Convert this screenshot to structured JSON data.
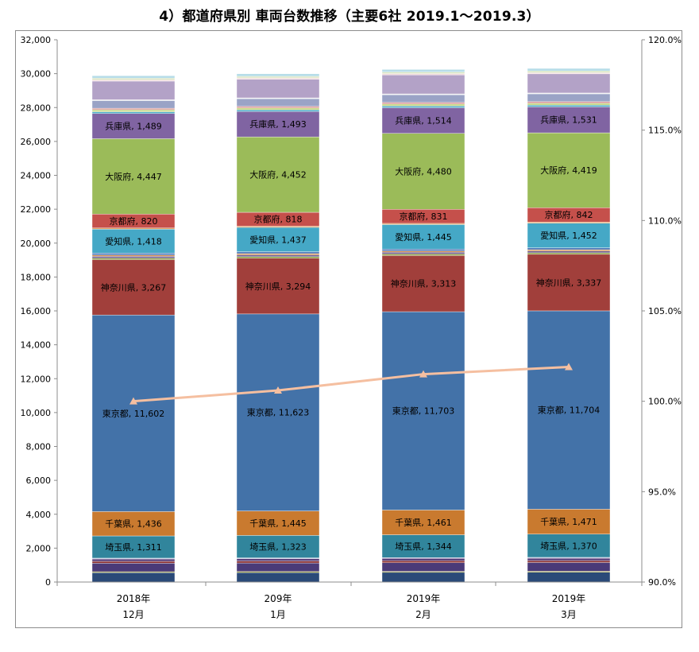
{
  "chart_data": {
    "type": "bar",
    "stacked": true,
    "title": "4）都道府県別 車両台数推移（主要6社 2019.1～2019.3）",
    "categories": [
      {
        "line1": "2018年",
        "line2": "12月"
      },
      {
        "line1": "209年",
        "line2": "1月"
      },
      {
        "line1": "2019年",
        "line2": "2月"
      },
      {
        "line1": "2019年",
        "line2": "3月"
      }
    ],
    "y_left": {
      "min": 0,
      "max": 32000,
      "step": 2000,
      "tick_labels": [
        "0",
        "2,000",
        "4,000",
        "6,000",
        "8,000",
        "10,000",
        "12,000",
        "14,000",
        "16,000",
        "18,000",
        "20,000",
        "22,000",
        "24,000",
        "26,000",
        "28,000",
        "30,000",
        "32,000"
      ]
    },
    "y_right": {
      "min": 90,
      "max": 120,
      "step": 5,
      "tick_labels": [
        "90.0%",
        "95.0%",
        "100.0%",
        "105.0%",
        "110.0%",
        "115.0%",
        "120.0%"
      ]
    },
    "grid": false,
    "series": [
      {
        "color": "#2a4a78",
        "values": [
          550,
          560,
          570,
          575
        ]
      },
      {
        "color": "#9c9c32",
        "values": [
          60,
          60,
          60,
          60
        ]
      },
      {
        "color": "#4a3a78",
        "values": [
          500,
          505,
          510,
          515
        ]
      },
      {
        "color": "#8a2e2e",
        "values": [
          110,
          112,
          112,
          115
        ]
      },
      {
        "color": "#5a3f7a",
        "values": [
          140,
          140,
          142,
          142
        ]
      },
      {
        "color": "#b0b8d8",
        "values": [
          50,
          50,
          50,
          50
        ]
      },
      {
        "name": "埼玉県",
        "label": "埼玉県",
        "color": "#31859c",
        "values": [
          1311,
          1323,
          1344,
          1370
        ]
      },
      {
        "name": "千葉県",
        "label": "千葉県",
        "color": "#c97a2f",
        "values": [
          1436,
          1445,
          1461,
          1471
        ]
      },
      {
        "name": "東京都",
        "label": "東京都",
        "color": "#4372a8",
        "values": [
          11602,
          11623,
          11703,
          11704
        ]
      },
      {
        "name": "神奈川県",
        "label": "神奈川県",
        "color": "#a13f3b",
        "values": [
          3267,
          3294,
          3313,
          3337
        ]
      },
      {
        "color": "#8a9e3e",
        "values": [
          90,
          90,
          92,
          92
        ]
      },
      {
        "color": "#6b5a90",
        "values": [
          100,
          100,
          100,
          102
        ]
      },
      {
        "color": "#d08a4a",
        "values": [
          80,
          80,
          80,
          80
        ]
      },
      {
        "color": "#4e79b8",
        "values": [
          110,
          110,
          112,
          112
        ]
      },
      {
        "name": "愛知県",
        "label": "愛知県",
        "color": "#45a8c6",
        "values": [
          1418,
          1437,
          1445,
          1452
        ]
      },
      {
        "color": "#e0a060",
        "values": [
          70,
          70,
          70,
          70
        ]
      },
      {
        "name": "京都府",
        "label": "京都府",
        "color": "#c5504b",
        "values": [
          820,
          818,
          831,
          842
        ]
      },
      {
        "name": "大阪府",
        "label": "大阪府",
        "color": "#9bbb59",
        "values": [
          4447,
          4452,
          4480,
          4419
        ]
      },
      {
        "name": "兵庫県",
        "label": "兵庫県",
        "color": "#8064a2",
        "values": [
          1489,
          1493,
          1514,
          1531
        ]
      },
      {
        "color": "#4bacc6",
        "values": [
          100,
          100,
          100,
          100
        ]
      },
      {
        "color": "#c9d98c",
        "values": [
          120,
          120,
          122,
          122
        ]
      },
      {
        "color": "#d99694",
        "values": [
          90,
          90,
          90,
          90
        ]
      },
      {
        "color": "#9aa3c6",
        "values": [
          450,
          450,
          455,
          458
        ]
      },
      {
        "color": "#f0f0f0",
        "values": [
          50,
          50,
          50,
          50
        ]
      },
      {
        "color": "#b3a2c7",
        "values": [
          1100,
          1100,
          1120,
          1130
        ]
      },
      {
        "color": "#f2dcdb",
        "values": [
          80,
          80,
          80,
          80
        ]
      },
      {
        "color": "#d7e4bd",
        "values": [
          90,
          90,
          90,
          90
        ]
      },
      {
        "color": "#b7dde8",
        "values": [
          150,
          150,
          150,
          150
        ]
      }
    ],
    "line": {
      "color": "#f5bfa0",
      "axis": "right",
      "values": [
        100.0,
        100.6,
        101.5,
        101.9
      ]
    }
  }
}
